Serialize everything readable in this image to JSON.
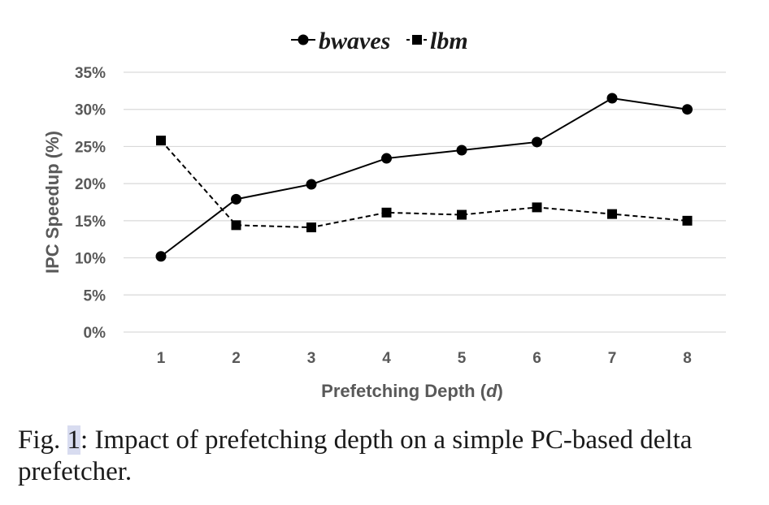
{
  "chart_data": {
    "type": "line",
    "x": [
      1,
      2,
      3,
      4,
      5,
      6,
      7,
      8
    ],
    "series": [
      {
        "name": "bwaves",
        "values": [
          10.2,
          17.9,
          19.9,
          23.4,
          24.5,
          25.6,
          31.5,
          30.0
        ],
        "color": "#000000",
        "line_style": "solid",
        "marker": "circle"
      },
      {
        "name": "lbm",
        "values": [
          25.8,
          14.4,
          14.1,
          16.1,
          15.8,
          16.8,
          15.9,
          15.0
        ],
        "color": "#000000",
        "line_style": "dashed",
        "marker": "square"
      }
    ],
    "xlabel": "Prefetching Depth (d)",
    "xlabel_main": "Prefetching Depth (",
    "xlabel_var": "d",
    "xlabel_close": ")",
    "ylabel": "IPC Speedup (%)",
    "yticks": [
      "0%",
      "5%",
      "10%",
      "15%",
      "20%",
      "25%",
      "30%",
      "35%"
    ],
    "ylim": [
      0,
      35
    ],
    "grid": true,
    "legend_position": "top-center"
  },
  "caption": {
    "prefix": "Fig. ",
    "number": "1",
    "text": ": Impact of prefetching depth on a simple PC-based delta prefetcher."
  }
}
